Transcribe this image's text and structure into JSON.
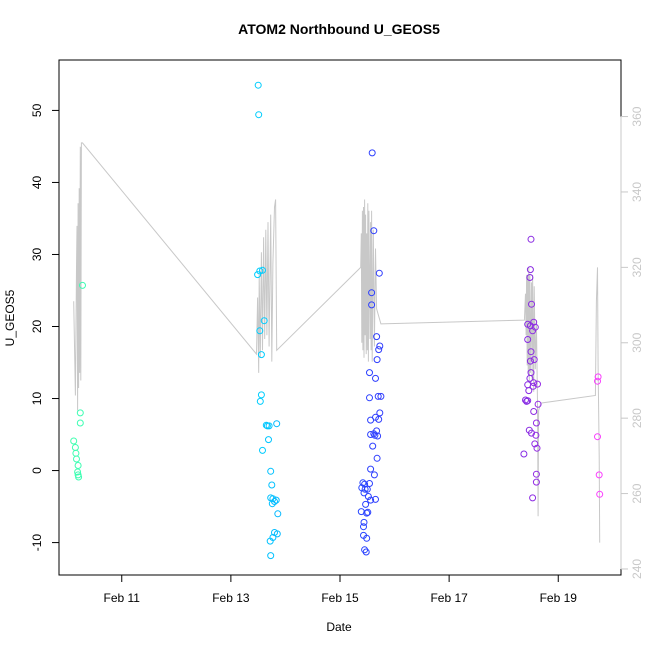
{
  "chart_data": {
    "type": "scatter",
    "title": "ATOM2 Northbound U_GEOS5",
    "xlabel": "Date",
    "ylabel": "U_GEOS5",
    "x_unit": "days (Feb)",
    "xlim": [
      9.85,
      20.15
    ],
    "ylim": [
      -14.5,
      57
    ],
    "x_ticks": [
      {
        "value": 11,
        "label": "Feb 11"
      },
      {
        "value": 13,
        "label": "Feb 13"
      },
      {
        "value": 15,
        "label": "Feb 15"
      },
      {
        "value": 17,
        "label": "Feb 17"
      },
      {
        "value": 19,
        "label": "Feb 19"
      }
    ],
    "y_ticks": [
      -10,
      0,
      10,
      20,
      30,
      40,
      50
    ],
    "y2_ticks": [
      240,
      260,
      280,
      300,
      320,
      340,
      360
    ],
    "y2lim": [
      238.4,
      375.0
    ],
    "grid": false,
    "series": [
      {
        "name": "",
        "style": "points",
        "color_scale": [
          "#40ffb0",
          "#00ccff",
          "#2a40ff",
          "#8a2be2",
          "#ff40ff"
        ],
        "points": [
          [
            10.12,
            4.1
          ],
          [
            10.15,
            3.2
          ],
          [
            10.16,
            2.4
          ],
          [
            10.17,
            1.6
          ],
          [
            10.2,
            0.7
          ],
          [
            10.19,
            -0.2
          ],
          [
            10.2,
            -0.6
          ],
          [
            10.21,
            -0.9
          ],
          [
            10.24,
            8.0
          ],
          [
            10.24,
            6.6
          ],
          [
            10.28,
            25.7
          ],
          [
            13.5,
            53.5
          ],
          [
            13.51,
            49.4
          ],
          [
            13.49,
            27.2
          ],
          [
            13.53,
            27.7
          ],
          [
            13.58,
            27.8
          ],
          [
            13.53,
            19.4
          ],
          [
            13.61,
            20.8
          ],
          [
            13.56,
            16.1
          ],
          [
            13.56,
            10.5
          ],
          [
            13.54,
            9.6
          ],
          [
            13.65,
            6.3
          ],
          [
            13.67,
            6.2
          ],
          [
            13.7,
            6.2
          ],
          [
            13.84,
            6.5
          ],
          [
            13.69,
            4.3
          ],
          [
            13.58,
            2.8
          ],
          [
            13.73,
            -0.1
          ],
          [
            13.75,
            -2.0
          ],
          [
            13.73,
            -3.8
          ],
          [
            13.77,
            -3.9
          ],
          [
            13.8,
            -4.3
          ],
          [
            13.76,
            -4.6
          ],
          [
            13.83,
            -4.1
          ],
          [
            13.86,
            -6.0
          ],
          [
            13.8,
            -8.6
          ],
          [
            13.85,
            -8.8
          ],
          [
            13.77,
            -9.3
          ],
          [
            13.72,
            -9.8
          ],
          [
            13.73,
            -11.8
          ],
          [
            15.59,
            44.1
          ],
          [
            15.62,
            33.3
          ],
          [
            15.72,
            27.4
          ],
          [
            15.58,
            24.7
          ],
          [
            15.58,
            23.0
          ],
          [
            15.67,
            18.6
          ],
          [
            15.73,
            17.3
          ],
          [
            15.71,
            16.8
          ],
          [
            15.68,
            15.4
          ],
          [
            15.54,
            13.6
          ],
          [
            15.65,
            12.8
          ],
          [
            15.7,
            10.3
          ],
          [
            15.75,
            10.3
          ],
          [
            15.54,
            10.1
          ],
          [
            15.73,
            8.0
          ],
          [
            15.71,
            7.1
          ],
          [
            15.65,
            7.4
          ],
          [
            15.56,
            7.0
          ],
          [
            15.62,
            5.1
          ],
          [
            15.67,
            5.5
          ],
          [
            15.64,
            4.9
          ],
          [
            15.69,
            4.8
          ],
          [
            15.56,
            5.0
          ],
          [
            15.6,
            3.4
          ],
          [
            15.68,
            1.7
          ],
          [
            15.56,
            0.2
          ],
          [
            15.63,
            -0.6
          ],
          [
            15.42,
            -1.7
          ],
          [
            15.45,
            -1.9
          ],
          [
            15.54,
            -1.8
          ],
          [
            15.4,
            -2.4
          ],
          [
            15.46,
            -2.6
          ],
          [
            15.5,
            -2.6
          ],
          [
            15.44,
            -3.1
          ],
          [
            15.52,
            -3.6
          ],
          [
            15.56,
            -4.1
          ],
          [
            15.65,
            -4.0
          ],
          [
            15.47,
            -4.7
          ],
          [
            15.51,
            -5.8
          ],
          [
            15.39,
            -5.7
          ],
          [
            15.49,
            -5.9
          ],
          [
            15.44,
            -7.2
          ],
          [
            15.43,
            -7.8
          ],
          [
            15.43,
            -9.0
          ],
          [
            15.49,
            -9.4
          ],
          [
            15.45,
            -11.0
          ],
          [
            15.48,
            -11.3
          ],
          [
            18.5,
            32.1
          ],
          [
            18.49,
            27.9
          ],
          [
            18.48,
            26.8
          ],
          [
            18.51,
            23.1
          ],
          [
            18.55,
            20.6
          ],
          [
            18.44,
            20.3
          ],
          [
            18.49,
            20.1
          ],
          [
            18.53,
            19.4
          ],
          [
            18.58,
            19.9
          ],
          [
            18.44,
            18.2
          ],
          [
            18.5,
            16.5
          ],
          [
            18.56,
            15.4
          ],
          [
            18.49,
            15.2
          ],
          [
            18.5,
            13.6
          ],
          [
            18.55,
            12.2
          ],
          [
            18.48,
            12.8
          ],
          [
            18.44,
            11.9
          ],
          [
            18.62,
            12.0
          ],
          [
            18.54,
            11.7
          ],
          [
            18.46,
            11.1
          ],
          [
            18.4,
            9.8
          ],
          [
            18.44,
            9.7
          ],
          [
            18.42,
            9.6
          ],
          [
            18.63,
            9.2
          ],
          [
            18.55,
            8.2
          ],
          [
            18.6,
            6.6
          ],
          [
            18.47,
            5.6
          ],
          [
            18.51,
            5.2
          ],
          [
            18.59,
            4.9
          ],
          [
            18.57,
            3.7
          ],
          [
            18.61,
            3.1
          ],
          [
            18.37,
            2.3
          ],
          [
            18.6,
            -0.5
          ],
          [
            18.6,
            -1.6
          ],
          [
            18.53,
            -3.8
          ],
          [
            19.73,
            13.0
          ],
          [
            19.72,
            12.4
          ],
          [
            19.72,
            4.7
          ],
          [
            19.75,
            -0.6
          ],
          [
            19.76,
            -3.3
          ]
        ]
      },
      {
        "name": "",
        "style": "line",
        "axis": "right",
        "color": "#c8c8c8",
        "points": [
          [
            10.12,
            311
          ],
          [
            10.15,
            286
          ],
          [
            10.17,
            320
          ],
          [
            10.18,
            331
          ],
          [
            10.19,
            282
          ],
          [
            10.2,
            337
          ],
          [
            10.21,
            288
          ],
          [
            10.22,
            341
          ],
          [
            10.23,
            292
          ],
          [
            10.24,
            352
          ],
          [
            10.25,
            290
          ],
          [
            10.26,
            353
          ],
          [
            10.28,
            353
          ],
          [
            13.47,
            297
          ],
          [
            13.49,
            312
          ],
          [
            13.51,
            292
          ],
          [
            13.52,
            318
          ],
          [
            13.54,
            296
          ],
          [
            13.56,
            324
          ],
          [
            13.58,
            298
          ],
          [
            13.6,
            328
          ],
          [
            13.62,
            301
          ],
          [
            13.64,
            330
          ],
          [
            13.66,
            302
          ],
          [
            13.68,
            332
          ],
          [
            13.7,
            299
          ],
          [
            13.73,
            334
          ],
          [
            13.75,
            295
          ],
          [
            13.77,
            321
          ],
          [
            13.8,
            336
          ],
          [
            13.82,
            338
          ],
          [
            13.84,
            298
          ],
          [
            15.38,
            320
          ],
          [
            15.39,
            329
          ],
          [
            15.4,
            300
          ],
          [
            15.41,
            335
          ],
          [
            15.42,
            298
          ],
          [
            15.43,
            336
          ],
          [
            15.44,
            296
          ],
          [
            15.45,
            338
          ],
          [
            15.46,
            302
          ],
          [
            15.47,
            334
          ],
          [
            15.48,
            297
          ],
          [
            15.49,
            329
          ],
          [
            15.5,
            298
          ],
          [
            15.51,
            337
          ],
          [
            15.52,
            295
          ],
          [
            15.53,
            335
          ],
          [
            15.55,
            301
          ],
          [
            15.56,
            332
          ],
          [
            15.57,
            298
          ],
          [
            15.58,
            335
          ],
          [
            15.59,
            295
          ],
          [
            15.61,
            330
          ],
          [
            15.63,
            299
          ],
          [
            15.65,
            325
          ],
          [
            15.67,
            309
          ],
          [
            15.75,
            305
          ],
          [
            18.38,
            306
          ],
          [
            18.4,
            313
          ],
          [
            18.41,
            302
          ],
          [
            18.42,
            318
          ],
          [
            18.43,
            294
          ],
          [
            18.44,
            318
          ],
          [
            18.45,
            292
          ],
          [
            18.46,
            320
          ],
          [
            18.47,
            290
          ],
          [
            18.48,
            318
          ],
          [
            18.49,
            292
          ],
          [
            18.51,
            316
          ],
          [
            18.52,
            290
          ],
          [
            18.53,
            318
          ],
          [
            18.55,
            287
          ],
          [
            18.56,
            315
          ],
          [
            18.58,
            293
          ],
          [
            18.6,
            306
          ],
          [
            18.62,
            284
          ],
          [
            18.63,
            254
          ],
          [
            18.64,
            282
          ],
          [
            18.68,
            284
          ],
          [
            19.68,
            286
          ],
          [
            19.7,
            311
          ],
          [
            19.72,
            320
          ],
          [
            19.73,
            294
          ],
          [
            19.75,
            270
          ],
          [
            19.76,
            247
          ]
        ]
      }
    ]
  }
}
